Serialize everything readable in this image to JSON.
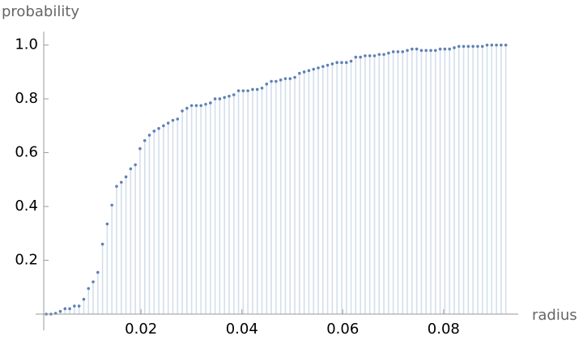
{
  "chart_data": {
    "type": "scatter",
    "x_label": "radius",
    "y_label": "probability",
    "x": [
      0.0012,
      0.00213,
      0.00306,
      0.00399,
      0.00492,
      0.00585,
      0.00678,
      0.00771,
      0.00864,
      0.00957,
      0.0105,
      0.01143,
      0.01236,
      0.01329,
      0.01422,
      0.01515,
      0.01608,
      0.01701,
      0.01794,
      0.01887,
      0.0198,
      0.02073,
      0.02166,
      0.02259,
      0.02352,
      0.02445,
      0.02538,
      0.02631,
      0.02724,
      0.02817,
      0.0291,
      0.03003,
      0.03096,
      0.03189,
      0.03282,
      0.03375,
      0.03468,
      0.03561,
      0.03654,
      0.03747,
      0.0384,
      0.03933,
      0.04026,
      0.04119,
      0.04212,
      0.04305,
      0.04398,
      0.04491,
      0.04584,
      0.04677,
      0.0477,
      0.04863,
      0.04956,
      0.05049,
      0.05142,
      0.05235,
      0.05328,
      0.05421,
      0.05514,
      0.05607,
      0.057,
      0.05793,
      0.05886,
      0.05979,
      0.06072,
      0.06165,
      0.06258,
      0.06351,
      0.06444,
      0.06537,
      0.0663,
      0.06723,
      0.06816,
      0.06909,
      0.07002,
      0.07095,
      0.07188,
      0.07281,
      0.07374,
      0.07467,
      0.0756,
      0.07653,
      0.07746,
      0.07839,
      0.07932,
      0.08025,
      0.08118,
      0.08211,
      0.08304,
      0.08397,
      0.0849,
      0.08583,
      0.08676,
      0.08769,
      0.08862,
      0.08955,
      0.09048,
      0.09141,
      0.09234
    ],
    "values": [
      0,
      0,
      0.003,
      0.01,
      0.02,
      0.02,
      0.03,
      0.03,
      0.055,
      0.095,
      0.12,
      0.155,
      0.26,
      0.335,
      0.405,
      0.475,
      0.49,
      0.51,
      0.54,
      0.555,
      0.615,
      0.645,
      0.665,
      0.68,
      0.69,
      0.7,
      0.71,
      0.72,
      0.725,
      0.755,
      0.765,
      0.775,
      0.775,
      0.775,
      0.78,
      0.785,
      0.8,
      0.8,
      0.805,
      0.81,
      0.815,
      0.83,
      0.83,
      0.83,
      0.835,
      0.835,
      0.84,
      0.855,
      0.865,
      0.865,
      0.87,
      0.875,
      0.875,
      0.88,
      0.895,
      0.9,
      0.905,
      0.91,
      0.915,
      0.92,
      0.925,
      0.93,
      0.935,
      0.935,
      0.935,
      0.94,
      0.955,
      0.955,
      0.96,
      0.96,
      0.96,
      0.965,
      0.965,
      0.97,
      0.975,
      0.975,
      0.975,
      0.98,
      0.985,
      0.985,
      0.98,
      0.98,
      0.98,
      0.98,
      0.985,
      0.985,
      0.985,
      0.99,
      0.995,
      0.995,
      0.995,
      0.995,
      0.995,
      0.995,
      1,
      1,
      1,
      1,
      1
    ],
    "color": "#5e81b5",
    "fill_color": "#d3dfec",
    "xlim": [
      0.0007,
      0.0948
    ],
    "ylim": [
      0,
      1.05
    ],
    "xticks": [
      0.02,
      0.04,
      0.06,
      0.08
    ],
    "yticks": [
      0.2,
      0.4,
      0.6,
      0.8,
      {
        "value": 1,
        "label": "1.0"
      }
    ]
  }
}
